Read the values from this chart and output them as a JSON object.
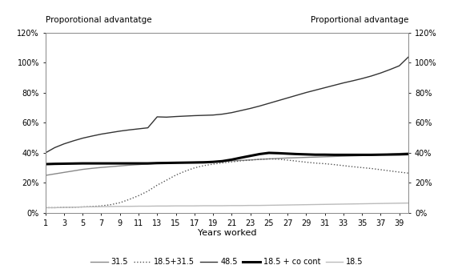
{
  "x": [
    1,
    2,
    3,
    4,
    5,
    6,
    7,
    8,
    9,
    10,
    11,
    12,
    13,
    14,
    15,
    16,
    17,
    18,
    19,
    20,
    21,
    22,
    23,
    24,
    25,
    26,
    27,
    28,
    29,
    30,
    31,
    32,
    33,
    34,
    35,
    36,
    37,
    38,
    39,
    40
  ],
  "series_31_5": [
    0.25,
    0.26,
    0.27,
    0.28,
    0.29,
    0.297,
    0.303,
    0.308,
    0.313,
    0.318,
    0.322,
    0.326,
    0.33,
    0.332,
    0.334,
    0.336,
    0.338,
    0.34,
    0.342,
    0.344,
    0.347,
    0.35,
    0.353,
    0.357,
    0.36,
    0.363,
    0.366,
    0.368,
    0.37,
    0.372,
    0.374,
    0.376,
    0.378,
    0.38,
    0.382,
    0.385,
    0.388,
    0.392,
    0.396,
    0.4
  ],
  "series_18_5_31_5": [
    0.035,
    0.035,
    0.037,
    0.038,
    0.04,
    0.043,
    0.047,
    0.055,
    0.068,
    0.09,
    0.115,
    0.145,
    0.185,
    0.218,
    0.252,
    0.278,
    0.3,
    0.315,
    0.325,
    0.333,
    0.34,
    0.347,
    0.352,
    0.357,
    0.36,
    0.358,
    0.352,
    0.345,
    0.338,
    0.332,
    0.328,
    0.322,
    0.315,
    0.308,
    0.302,
    0.296,
    0.288,
    0.28,
    0.272,
    0.265
  ],
  "series_48_5": [
    0.4,
    0.435,
    0.46,
    0.48,
    0.498,
    0.512,
    0.525,
    0.535,
    0.545,
    0.553,
    0.56,
    0.567,
    0.64,
    0.638,
    0.642,
    0.645,
    0.648,
    0.65,
    0.652,
    0.658,
    0.668,
    0.682,
    0.696,
    0.712,
    0.73,
    0.748,
    0.766,
    0.784,
    0.802,
    0.818,
    0.834,
    0.85,
    0.866,
    0.88,
    0.895,
    0.912,
    0.932,
    0.955,
    0.98,
    1.04
  ],
  "series_18_5_co_cont": [
    0.325,
    0.327,
    0.328,
    0.329,
    0.33,
    0.33,
    0.33,
    0.33,
    0.33,
    0.33,
    0.33,
    0.33,
    0.332,
    0.333,
    0.334,
    0.335,
    0.336,
    0.337,
    0.34,
    0.345,
    0.355,
    0.368,
    0.38,
    0.392,
    0.4,
    0.398,
    0.395,
    0.392,
    0.39,
    0.388,
    0.388,
    0.387,
    0.387,
    0.387,
    0.387,
    0.387,
    0.388,
    0.389,
    0.39,
    0.392
  ],
  "series_18_5": [
    0.035,
    0.035,
    0.037,
    0.038,
    0.04,
    0.041,
    0.042,
    0.043,
    0.044,
    0.044,
    0.045,
    0.045,
    0.046,
    0.046,
    0.047,
    0.047,
    0.047,
    0.048,
    0.048,
    0.048,
    0.049,
    0.049,
    0.05,
    0.05,
    0.051,
    0.052,
    0.053,
    0.054,
    0.055,
    0.056,
    0.057,
    0.058,
    0.059,
    0.06,
    0.061,
    0.062,
    0.063,
    0.064,
    0.065,
    0.066
  ],
  "ylabel_left": "Proporotional advantatge",
  "ylabel_right": "Proportional advantage",
  "xlabel": "Years worked",
  "ylim": [
    0.0,
    1.2
  ],
  "yticks": [
    0.0,
    0.2,
    0.4,
    0.6,
    0.8,
    1.0,
    1.2
  ],
  "yticklabels": [
    "0%",
    "20%",
    "40%",
    "60%",
    "80%",
    "100%",
    "120%"
  ],
  "xticks": [
    1,
    3,
    5,
    7,
    9,
    11,
    13,
    15,
    17,
    19,
    21,
    23,
    25,
    27,
    29,
    31,
    33,
    35,
    37,
    39
  ],
  "color_31_5": "#888888",
  "color_18_5_31_5": "#555555",
  "color_48_5": "#333333",
  "color_18_5_co_cont": "#000000",
  "color_18_5": "#bbbbbb",
  "lw_31_5": 1.0,
  "lw_18_5_31_5": 1.0,
  "lw_48_5": 1.0,
  "lw_18_5_co_cont": 2.2,
  "lw_18_5": 1.0,
  "legend_labels": [
    "31.5",
    "18.5+31.5",
    "48.5",
    "18.5 + co cont",
    "18.5"
  ]
}
